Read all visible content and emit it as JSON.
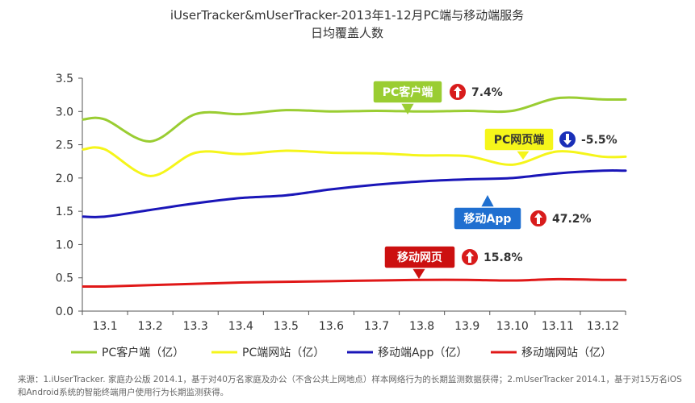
{
  "chart_data": {
    "type": "line",
    "title": "iUserTracker&mUserTracker-2013年1-12月PC端与移动端服务",
    "subtitle": "日均覆盖人数",
    "categories": [
      "13.1",
      "13.2",
      "13.3",
      "13.4",
      "13.5",
      "13.6",
      "13.7",
      "13.8",
      "13.9",
      "13.10",
      "13.11",
      "13.12"
    ],
    "y_ticks": [
      "0.0",
      "0.5",
      "1.0",
      "1.5",
      "2.0",
      "2.5",
      "3.0",
      "3.5"
    ],
    "ylim": [
      0,
      3.5
    ],
    "grid": false,
    "legend_position": "bottom",
    "series": [
      {
        "name": "PC客户端（亿）",
        "color": "#9acd32",
        "values": [
          2.88,
          2.55,
          2.96,
          2.96,
          3.02,
          3.0,
          3.01,
          3.0,
          3.01,
          3.01,
          3.2,
          3.18
        ]
      },
      {
        "name": "PC端网站（亿）",
        "color": "#f5f51a",
        "values": [
          2.43,
          2.03,
          2.38,
          2.36,
          2.41,
          2.38,
          2.37,
          2.34,
          2.33,
          2.2,
          2.4,
          2.32
        ]
      },
      {
        "name": "移动端App（亿）",
        "color": "#1a16b8",
        "values": [
          1.42,
          1.52,
          1.62,
          1.7,
          1.74,
          1.83,
          1.9,
          1.95,
          1.98,
          2.0,
          2.07,
          2.11
        ]
      },
      {
        "name": "移动端网站（亿）",
        "color": "#e01818",
        "values": [
          0.37,
          0.39,
          0.41,
          0.43,
          0.44,
          0.45,
          0.46,
          0.47,
          0.47,
          0.46,
          0.48,
          0.47
        ]
      }
    ],
    "annotations": [
      {
        "label": "PC客户端",
        "change": "7.4%",
        "direction": "up",
        "box_color": "#9acd32",
        "text_color": "#ffffff"
      },
      {
        "label": "PC网页端",
        "change": "-5.5%",
        "direction": "down",
        "box_color": "#f5f51a",
        "text_color": "#333333"
      },
      {
        "label": "移动App",
        "change": "47.2%",
        "direction": "up",
        "box_color": "#1f6fd0",
        "text_color": "#ffffff"
      },
      {
        "label": "移动网页",
        "change": "15.8%",
        "direction": "up",
        "box_color": "#cc1010",
        "text_color": "#ffffff"
      }
    ]
  },
  "source_note": "来源：1.iUserTracker. 家庭办公版 2014.1，基于对40万名家庭及办公（不含公共上网地点）样本网络行为的长期监测数据获得；2.mUserTracker 2014.1，基于对15万名iOS和Android系统的智能终端用户使用行为长期监测获得。"
}
